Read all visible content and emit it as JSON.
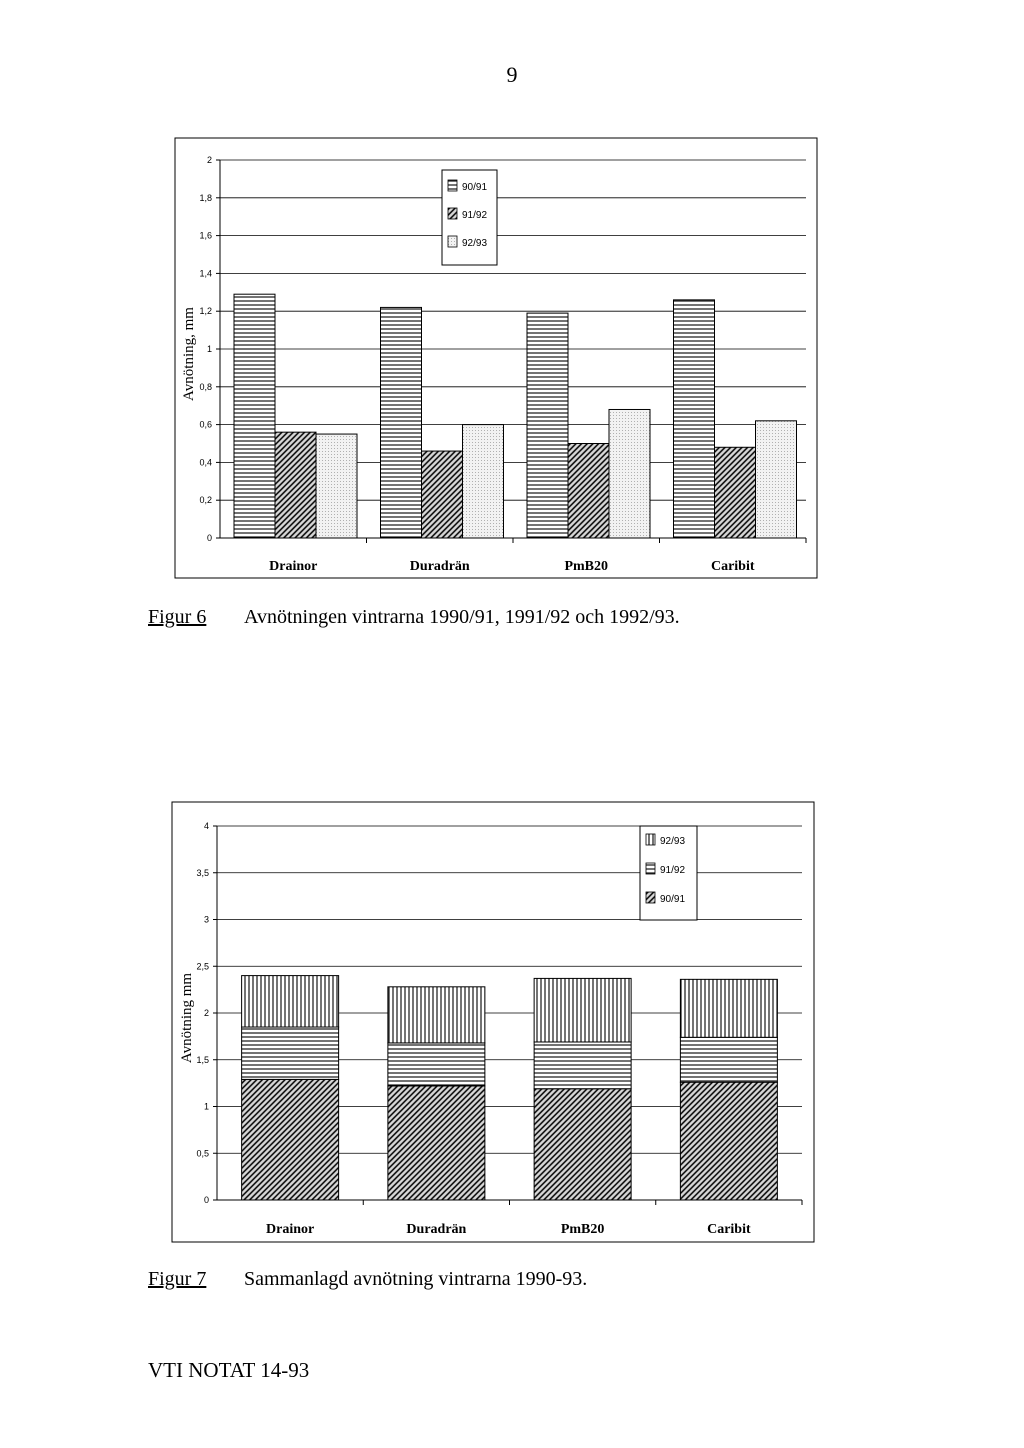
{
  "page_number": "9",
  "figures": [
    {
      "label": "Figur 6",
      "caption": "Avnötningen vintrarna 1990/91, 1991/92 och 1992/93."
    },
    {
      "label": "Figur 7",
      "caption": "Sammanlagd avnötning vintrarna 1990-93."
    }
  ],
  "footer": "VTI NOTAT 14-93",
  "chart_data": [
    {
      "type": "bar",
      "ylabel": "Avnötning, mm",
      "xlabel": "",
      "ylim": [
        0,
        2
      ],
      "yticks": [
        "0",
        "0,2",
        "0,4",
        "0,6",
        "0,8",
        "1",
        "1,2",
        "1,4",
        "1,6",
        "1,8",
        "2"
      ],
      "grid": true,
      "legend_position": "top-center",
      "categories": [
        "Drainor",
        "Duradrän",
        "PmB20",
        "Caribit"
      ],
      "series": [
        {
          "name": "90/91",
          "values": [
            1.29,
            1.22,
            1.19,
            1.26
          ],
          "pattern": "horizontal-lines"
        },
        {
          "name": "91/92",
          "values": [
            0.56,
            0.46,
            0.5,
            0.48
          ],
          "pattern": "diagonal-hatch"
        },
        {
          "name": "92/93",
          "values": [
            0.55,
            0.6,
            0.68,
            0.62
          ],
          "pattern": "light-dots"
        }
      ]
    },
    {
      "type": "stacked-bar",
      "ylabel": "Avnötning mm",
      "xlabel": "",
      "ylim": [
        0,
        4
      ],
      "yticks": [
        "0",
        "0,5",
        "1",
        "1,5",
        "2",
        "2,5",
        "3",
        "3,5",
        "4"
      ],
      "grid": true,
      "legend_position": "top-right",
      "categories": [
        "Drainor",
        "Duradrän",
        "PmB20",
        "Caribit"
      ],
      "series": [
        {
          "name": "90/91",
          "values": [
            1.29,
            1.22,
            1.19,
            1.26
          ],
          "pattern": "diagonal-hatch"
        },
        {
          "name": "91/92",
          "values": [
            0.56,
            0.46,
            0.5,
            0.48
          ],
          "pattern": "horizontal-lines"
        },
        {
          "name": "92/93",
          "values": [
            0.55,
            0.6,
            0.68,
            0.62
          ],
          "pattern": "vertical-lines"
        }
      ],
      "legend_order": [
        "92/93",
        "91/92",
        "90/91"
      ]
    }
  ]
}
